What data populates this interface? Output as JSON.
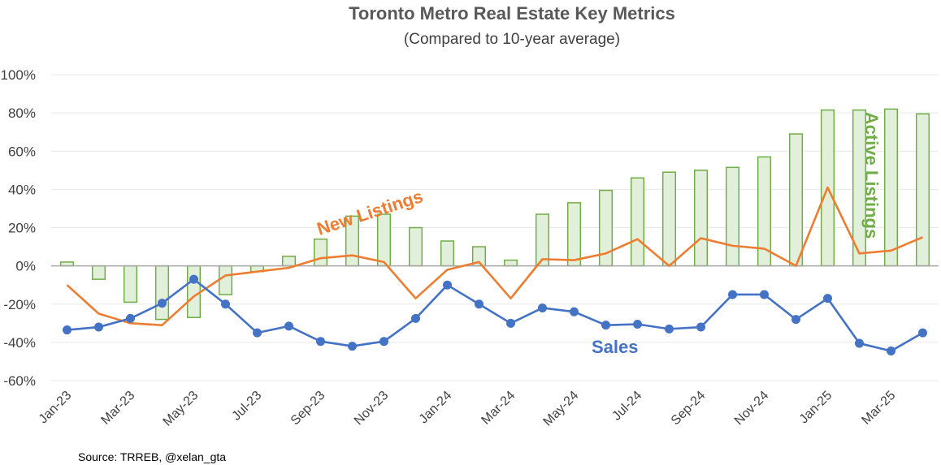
{
  "chart_data": {
    "type": "bar+line",
    "title": "Toronto Metro Real Estate Key Metrics",
    "subtitle": "(Compared to 10-year average)",
    "source": "Source: TRREB, @xelan_gta",
    "ylim": [
      -60,
      100
    ],
    "yticks": [
      -60,
      -40,
      -20,
      0,
      20,
      40,
      60,
      80,
      100
    ],
    "ytick_labels": [
      "-60%",
      "-40%",
      "-20%",
      "0%",
      "20%",
      "40%",
      "60%",
      "80%",
      "100%"
    ],
    "grid": true,
    "months": [
      "Jan-23",
      "Feb-23",
      "Mar-23",
      "Apr-23",
      "May-23",
      "Jun-23",
      "Jul-23",
      "Aug-23",
      "Sep-23",
      "Oct-23",
      "Nov-23",
      "Dec-23",
      "Jan-24",
      "Feb-24",
      "Mar-24",
      "Apr-24",
      "May-24",
      "Jun-24",
      "Jul-24",
      "Aug-24",
      "Sep-24",
      "Oct-24",
      "Nov-24",
      "Dec-24",
      "Jan-25",
      "Feb-25",
      "Mar-25",
      "Apr-25"
    ],
    "tick_labels": [
      "Jan-23",
      "Mar-23",
      "May-23",
      "Jul-23",
      "Sep-23",
      "Nov-23",
      "Jan-24",
      "Mar-24",
      "May-24",
      "Jul-24",
      "Sep-24",
      "Nov-24",
      "Jan-25",
      "Mar-25"
    ],
    "series": [
      {
        "name": "Active Listings",
        "kind": "bar",
        "label": "Active Listings",
        "color": "#70AD47",
        "fill": "#E2EFDA",
        "values": [
          2,
          -7,
          -19,
          -28,
          -27,
          -15,
          -3,
          5,
          14,
          26,
          27,
          20,
          13,
          10,
          3,
          27,
          33,
          39.5,
          46,
          49,
          50,
          51.5,
          57,
          69,
          81.5,
          81.5,
          82,
          79.5
        ]
      },
      {
        "name": "New Listings",
        "kind": "line",
        "label": "New Listings",
        "color": "#ED7D31",
        "values": [
          -10,
          -25,
          -30,
          -31,
          -16,
          -5,
          -3,
          -1,
          4,
          5.5,
          2,
          -17,
          -2,
          2,
          -17,
          3.5,
          3,
          6.5,
          14,
          0,
          14.5,
          10.5,
          9,
          0,
          41,
          6.5,
          8,
          15
        ]
      },
      {
        "name": "Sales",
        "kind": "line-markers",
        "label": "Sales",
        "color": "#4472C4",
        "values": [
          -33.5,
          -32,
          -27.5,
          -19.5,
          -7,
          -20,
          -35,
          -31.5,
          -39.5,
          -42,
          -39.5,
          -27.5,
          -10,
          -20,
          -30,
          -22,
          -24,
          -31,
          -30.5,
          -33,
          -32,
          -15,
          -15,
          -28,
          -17,
          -40.5,
          -44.5,
          -35
        ]
      }
    ]
  }
}
